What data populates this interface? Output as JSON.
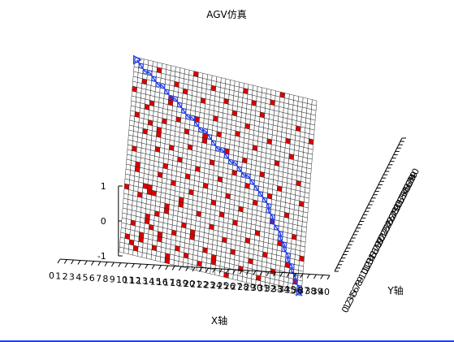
{
  "chart_data": {
    "type": "heatmap",
    "title": "AGV仿真",
    "xlabel": "X轴",
    "ylabel": "Y轴",
    "zlabel": "",
    "xlim": [
      0,
      40
    ],
    "ylim": [
      0,
      40
    ],
    "zlim": [
      -1,
      1
    ],
    "x_ticks": [
      "0",
      "1",
      "2",
      "3",
      "4",
      "5",
      "6",
      "7",
      "8",
      "9",
      "10",
      "11",
      "12",
      "13",
      "14",
      "15",
      "16",
      "17",
      "18",
      "19",
      "20",
      "21",
      "22",
      "23",
      "24",
      "25",
      "26",
      "27",
      "28",
      "29",
      "30",
      "31",
      "32",
      "33",
      "34",
      "35",
      "36",
      "37",
      "38",
      "39",
      "40"
    ],
    "y_ticks": [
      "0",
      "1",
      "2",
      "3",
      "4",
      "5",
      "6",
      "7",
      "8",
      "9",
      "10",
      "11",
      "12",
      "13",
      "14",
      "15",
      "16",
      "17",
      "18",
      "19",
      "20",
      "21",
      "22",
      "23",
      "24",
      "25",
      "26",
      "27",
      "28",
      "29",
      "30",
      "31",
      "32",
      "33",
      "34",
      "35",
      "36",
      "37",
      "38",
      "39",
      "40"
    ],
    "z_ticks": [
      "-1",
      "0",
      "1"
    ],
    "grid_cell_values": [
      "free",
      "obstacle"
    ],
    "grid_size": [
      40,
      40
    ],
    "obstacle_cells": [
      [
        0,
        13
      ],
      [
        0,
        33
      ],
      [
        1,
        3
      ],
      [
        1,
        21
      ],
      [
        1,
        28
      ],
      [
        2,
        2
      ],
      [
        2,
        6
      ],
      [
        2,
        17
      ],
      [
        2,
        18
      ],
      [
        2,
        35
      ],
      [
        3,
        1
      ],
      [
        3,
        12
      ],
      [
        3,
        25
      ],
      [
        3,
        30
      ],
      [
        4,
        3
      ],
      [
        4,
        4
      ],
      [
        4,
        14
      ],
      [
        4,
        27
      ],
      [
        4,
        31
      ],
      [
        5,
        7
      ],
      [
        5,
        8
      ],
      [
        5,
        13
      ],
      [
        5,
        14
      ],
      [
        5,
        38
      ],
      [
        6,
        6
      ],
      [
        6,
        13
      ],
      [
        6,
        22
      ],
      [
        6,
        25
      ],
      [
        6,
        26
      ],
      [
        7,
        2
      ],
      [
        7,
        9
      ],
      [
        7,
        17
      ],
      [
        7,
        28
      ],
      [
        8,
        4
      ],
      [
        8,
        5
      ],
      [
        8,
        19
      ],
      [
        8,
        32
      ],
      [
        8,
        33
      ],
      [
        9,
        10
      ],
      [
        9,
        11
      ],
      [
        9,
        23
      ],
      [
        9,
        36
      ],
      [
        10,
        0
      ],
      [
        10,
        1
      ],
      [
        10,
        16
      ],
      [
        10,
        29
      ],
      [
        11,
        6
      ],
      [
        11,
        21
      ],
      [
        11,
        35
      ],
      [
        12,
        3
      ],
      [
        12,
        12
      ],
      [
        12,
        13
      ],
      [
        12,
        27
      ],
      [
        13,
        8
      ],
      [
        13,
        18
      ],
      [
        13,
        24
      ],
      [
        13,
        39
      ],
      [
        14,
        2
      ],
      [
        14,
        15
      ],
      [
        14,
        30
      ],
      [
        15,
        6
      ],
      [
        15,
        7
      ],
      [
        15,
        20
      ],
      [
        15,
        34
      ],
      [
        16,
        11
      ],
      [
        16,
        26
      ],
      [
        16,
        27
      ],
      [
        17,
        1
      ],
      [
        17,
        17
      ],
      [
        17,
        37
      ],
      [
        18,
        4
      ],
      [
        18,
        22
      ],
      [
        18,
        31
      ],
      [
        19,
        9
      ],
      [
        19,
        14
      ],
      [
        19,
        28
      ],
      [
        20,
        2
      ],
      [
        20,
        3
      ],
      [
        20,
        19
      ],
      [
        20,
        35
      ],
      [
        21,
        12
      ],
      [
        21,
        25
      ],
      [
        22,
        7
      ],
      [
        22,
        16
      ],
      [
        22,
        33
      ],
      [
        23,
        0
      ],
      [
        23,
        21
      ],
      [
        23,
        29
      ],
      [
        24,
        5
      ],
      [
        24,
        11
      ],
      [
        24,
        38
      ],
      [
        25,
        14
      ],
      [
        25,
        24
      ],
      [
        25,
        31
      ],
      [
        26,
        2
      ],
      [
        26,
        19
      ],
      [
        26,
        36
      ],
      [
        27,
        8
      ],
      [
        27,
        27
      ],
      [
        28,
        4
      ],
      [
        28,
        16
      ],
      [
        28,
        34
      ],
      [
        29,
        10
      ],
      [
        29,
        22
      ],
      [
        30,
        1
      ],
      [
        30,
        29
      ],
      [
        30,
        37
      ],
      [
        31,
        6
      ],
      [
        31,
        18
      ],
      [
        32,
        13
      ],
      [
        32,
        25
      ],
      [
        32,
        39
      ],
      [
        33,
        3
      ],
      [
        33,
        20
      ],
      [
        34,
        9
      ],
      [
        34,
        30
      ],
      [
        35,
        15
      ],
      [
        35,
        27
      ],
      [
        36,
        5
      ],
      [
        36,
        33
      ],
      [
        37,
        11
      ],
      [
        37,
        22
      ],
      [
        38,
        2
      ],
      [
        38,
        18
      ],
      [
        39,
        7
      ],
      [
        39,
        31
      ]
    ],
    "path": {
      "start": [
        0,
        39
      ],
      "goal": [
        39,
        0
      ],
      "points": [
        [
          0,
          39
        ],
        [
          1,
          38
        ],
        [
          2,
          37
        ],
        [
          3,
          37
        ],
        [
          4,
          36
        ],
        [
          5,
          35
        ],
        [
          6,
          35
        ],
        [
          7,
          34
        ],
        [
          8,
          33
        ],
        [
          9,
          33
        ],
        [
          10,
          32
        ],
        [
          11,
          31
        ],
        [
          12,
          30
        ],
        [
          13,
          30
        ],
        [
          14,
          29
        ],
        [
          15,
          28
        ],
        [
          16,
          28
        ],
        [
          17,
          27
        ],
        [
          18,
          26
        ],
        [
          19,
          25
        ],
        [
          20,
          25
        ],
        [
          21,
          24
        ],
        [
          22,
          23
        ],
        [
          23,
          23
        ],
        [
          24,
          22
        ],
        [
          25,
          21
        ],
        [
          26,
          21
        ],
        [
          27,
          20
        ],
        [
          28,
          19
        ],
        [
          29,
          18
        ],
        [
          30,
          17
        ],
        [
          31,
          16
        ],
        [
          31,
          15
        ],
        [
          32,
          14
        ],
        [
          32,
          13
        ],
        [
          33,
          12
        ],
        [
          34,
          11
        ],
        [
          34,
          10
        ],
        [
          35,
          9
        ],
        [
          35,
          8
        ],
        [
          36,
          7
        ],
        [
          36,
          6
        ],
        [
          37,
          5
        ],
        [
          37,
          4
        ],
        [
          38,
          3
        ],
        [
          38,
          2
        ],
        [
          39,
          1
        ],
        [
          39,
          0
        ]
      ]
    },
    "grid": true,
    "colors": {
      "free": "#ffffff",
      "obstacle": "#dd0000",
      "gridline": "#222222",
      "path": "#1f3df5"
    }
  }
}
